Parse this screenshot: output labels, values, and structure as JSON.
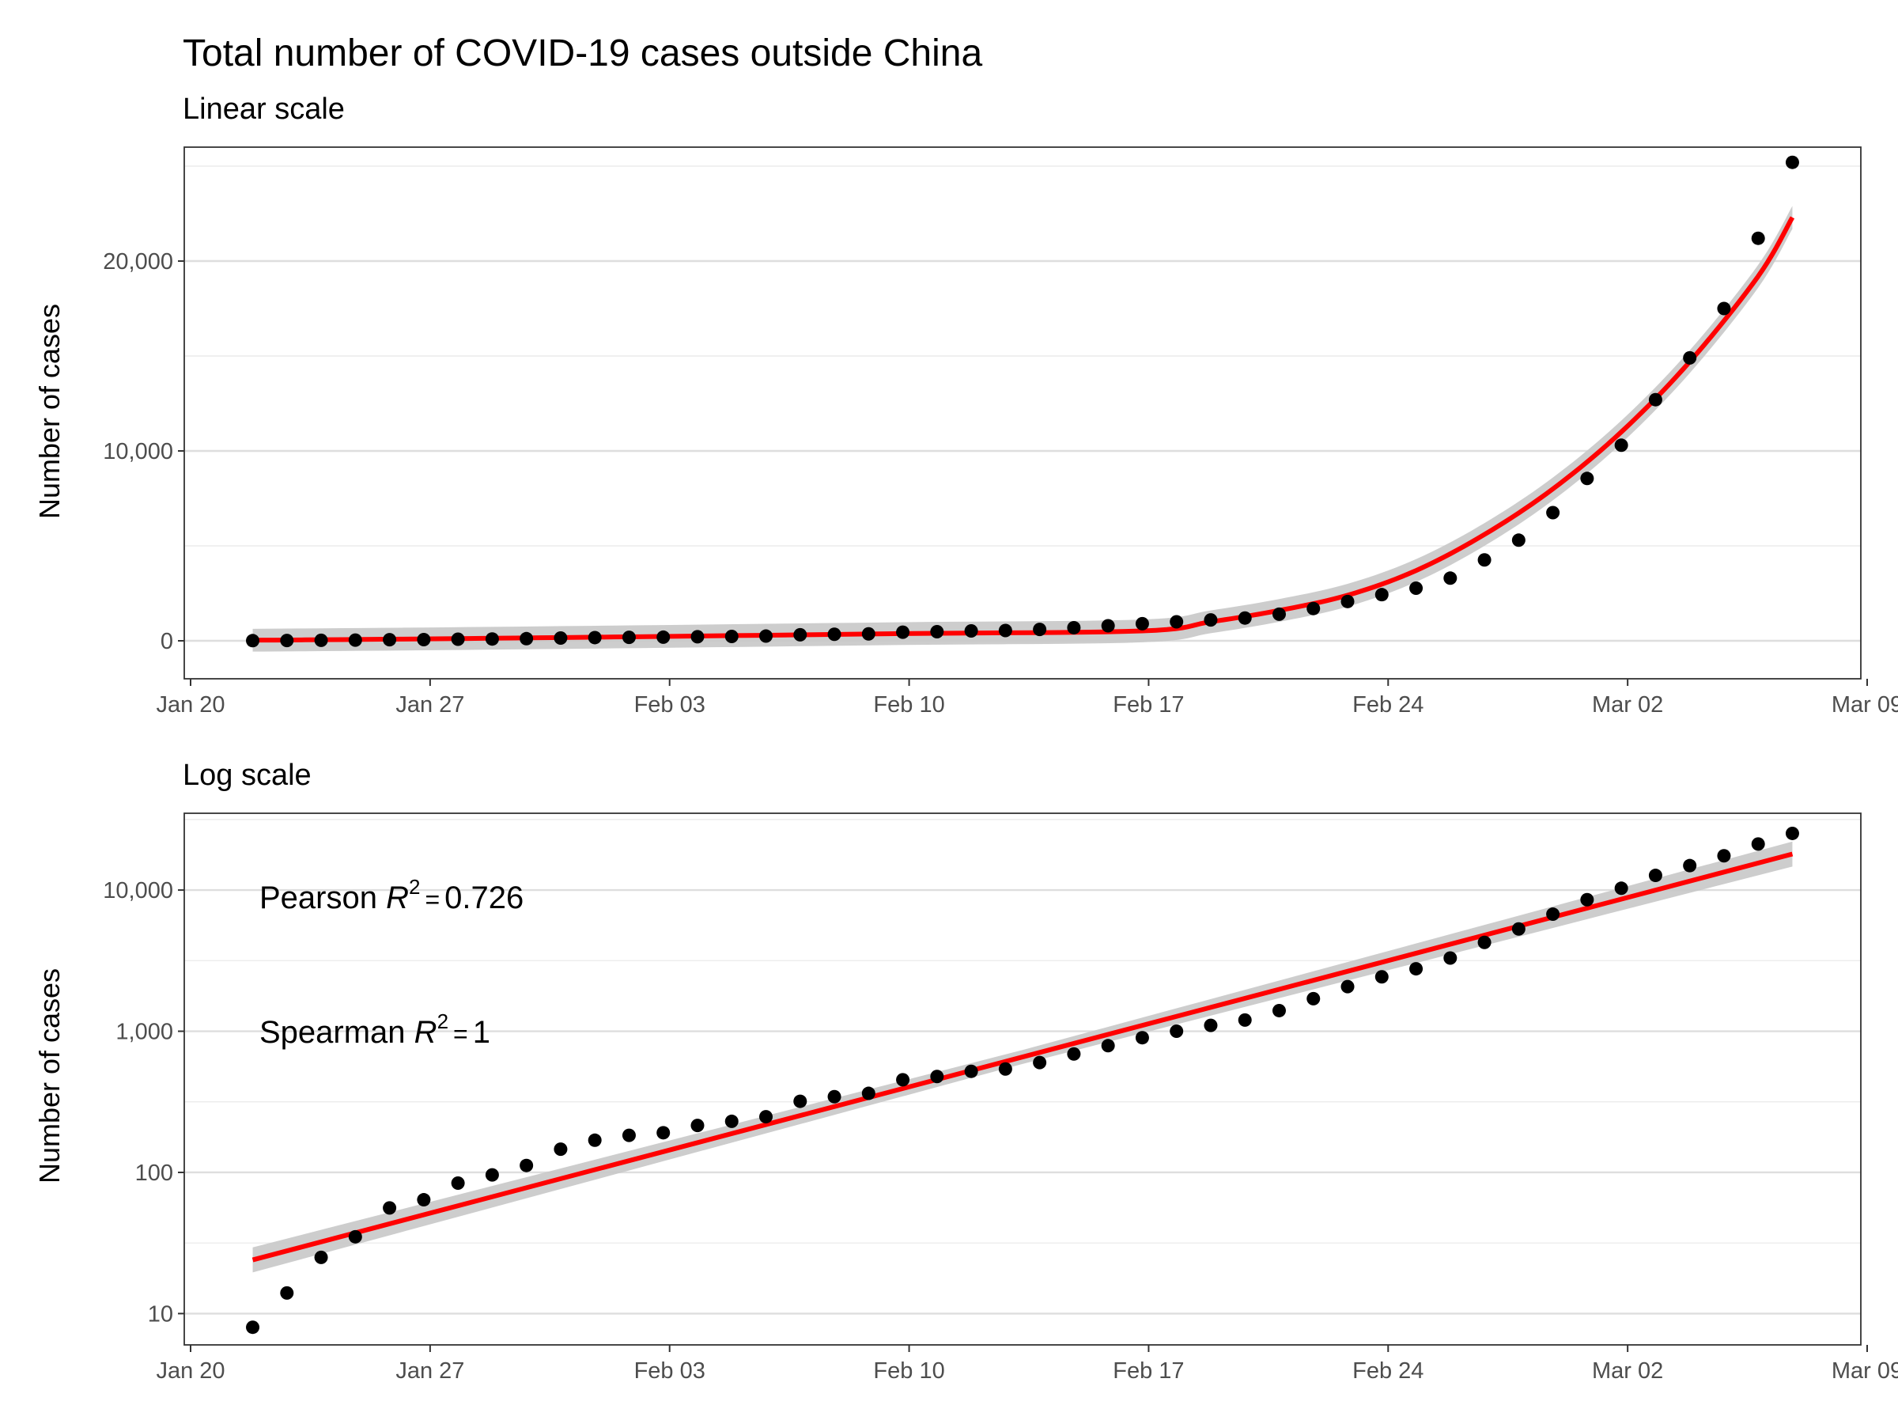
{
  "title": "Total number of COVID-19 cases outside China",
  "colors": {
    "fit_line": "#ff0000",
    "confidence_band": "#c8c8c8",
    "points": "#000000",
    "grid": "#dedede"
  },
  "chart_data": [
    {
      "type": "scatter",
      "subtitle": "Linear scale",
      "ylabel": "Number of cases",
      "xlabel": "",
      "y_scale": "linear",
      "x_ticks": [
        "Jan 20",
        "Jan 27",
        "Feb 03",
        "Feb 10",
        "Feb 17",
        "Feb 24",
        "Mar 02",
        "Mar 09"
      ],
      "y_ticks": [
        0,
        10000,
        20000
      ],
      "y_tick_labels": [
        "0",
        "10,000",
        "20,000"
      ],
      "xlim": [
        "2020-01-20",
        "2020-03-09"
      ],
      "ylim": [
        -2000,
        26000
      ],
      "grid": true,
      "x": [
        "2020-01-22",
        "2020-01-23",
        "2020-01-24",
        "2020-01-25",
        "2020-01-26",
        "2020-01-27",
        "2020-01-28",
        "2020-01-29",
        "2020-01-30",
        "2020-01-31",
        "2020-02-01",
        "2020-02-02",
        "2020-02-03",
        "2020-02-04",
        "2020-02-05",
        "2020-02-06",
        "2020-02-07",
        "2020-02-08",
        "2020-02-09",
        "2020-02-10",
        "2020-02-11",
        "2020-02-12",
        "2020-02-13",
        "2020-02-14",
        "2020-02-15",
        "2020-02-16",
        "2020-02-17",
        "2020-02-18",
        "2020-02-19",
        "2020-02-20",
        "2020-02-21",
        "2020-02-22",
        "2020-02-23",
        "2020-02-24",
        "2020-02-25",
        "2020-02-26",
        "2020-02-27",
        "2020-02-28",
        "2020-02-29",
        "2020-03-01",
        "2020-03-02",
        "2020-03-03",
        "2020-03-04",
        "2020-03-05",
        "2020-03-06",
        "2020-03-07"
      ],
      "y": [
        8,
        14,
        25,
        35,
        56,
        64,
        84,
        96,
        112,
        146,
        169,
        183,
        191,
        215,
        230,
        248,
        319,
        344,
        363,
        453,
        478,
        520,
        540,
        600,
        690,
        790,
        900,
        1000,
        1100,
        1200,
        1400,
        1700,
        2070,
        2430,
        2770,
        3300,
        4260,
        5300,
        6750,
        8550,
        10300,
        12700,
        14900,
        17500,
        21200,
        25200
      ],
      "smooth_fit": [
        {
          "x": "2020-01-22",
          "y": 30
        },
        {
          "x": "2020-01-27",
          "y": 100
        },
        {
          "x": "2020-02-03",
          "y": 230
        },
        {
          "x": "2020-02-10",
          "y": 380
        },
        {
          "x": "2020-02-17",
          "y": 520
        },
        {
          "x": "2020-02-19",
          "y": 1000
        },
        {
          "x": "2020-02-21",
          "y": 1600
        },
        {
          "x": "2020-02-23",
          "y": 2400
        },
        {
          "x": "2020-02-25",
          "y": 3700
        },
        {
          "x": "2020-02-27",
          "y": 5600
        },
        {
          "x": "2020-02-29",
          "y": 8000
        },
        {
          "x": "2020-03-02",
          "y": 11000
        },
        {
          "x": "2020-03-04",
          "y": 14700
        },
        {
          "x": "2020-03-06",
          "y": 19200
        },
        {
          "x": "2020-03-07",
          "y": 22300
        }
      ],
      "smooth_ci_halfwidth": 600
    },
    {
      "type": "scatter",
      "subtitle": "Log scale",
      "ylabel": "Number of cases",
      "xlabel": "",
      "y_scale": "log10",
      "x_ticks": [
        "Jan 20",
        "Jan 27",
        "Feb 03",
        "Feb 10",
        "Feb 17",
        "Feb 24",
        "Mar 02",
        "Mar 09"
      ],
      "y_ticks": [
        10,
        100,
        1000,
        10000
      ],
      "y_tick_labels": [
        "10",
        "100",
        "1,000",
        "10,000"
      ],
      "xlim": [
        "2020-01-20",
        "2020-03-09"
      ],
      "ylim": [
        6,
        35000
      ],
      "grid": true,
      "annotations": {
        "pearson_label": "Pearson ",
        "pearson_value": "0.726",
        "spearman_label": "Spearman ",
        "spearman_value": "1",
        "r_symbol": "R",
        "r_exponent": "2",
        "equals": "="
      },
      "linear_fit": {
        "start": {
          "x": "2020-01-22",
          "y": 24
        },
        "end": {
          "x": "2020-03-07",
          "y": 18000
        }
      },
      "fit_ci_ratio": 1.12
    }
  ]
}
